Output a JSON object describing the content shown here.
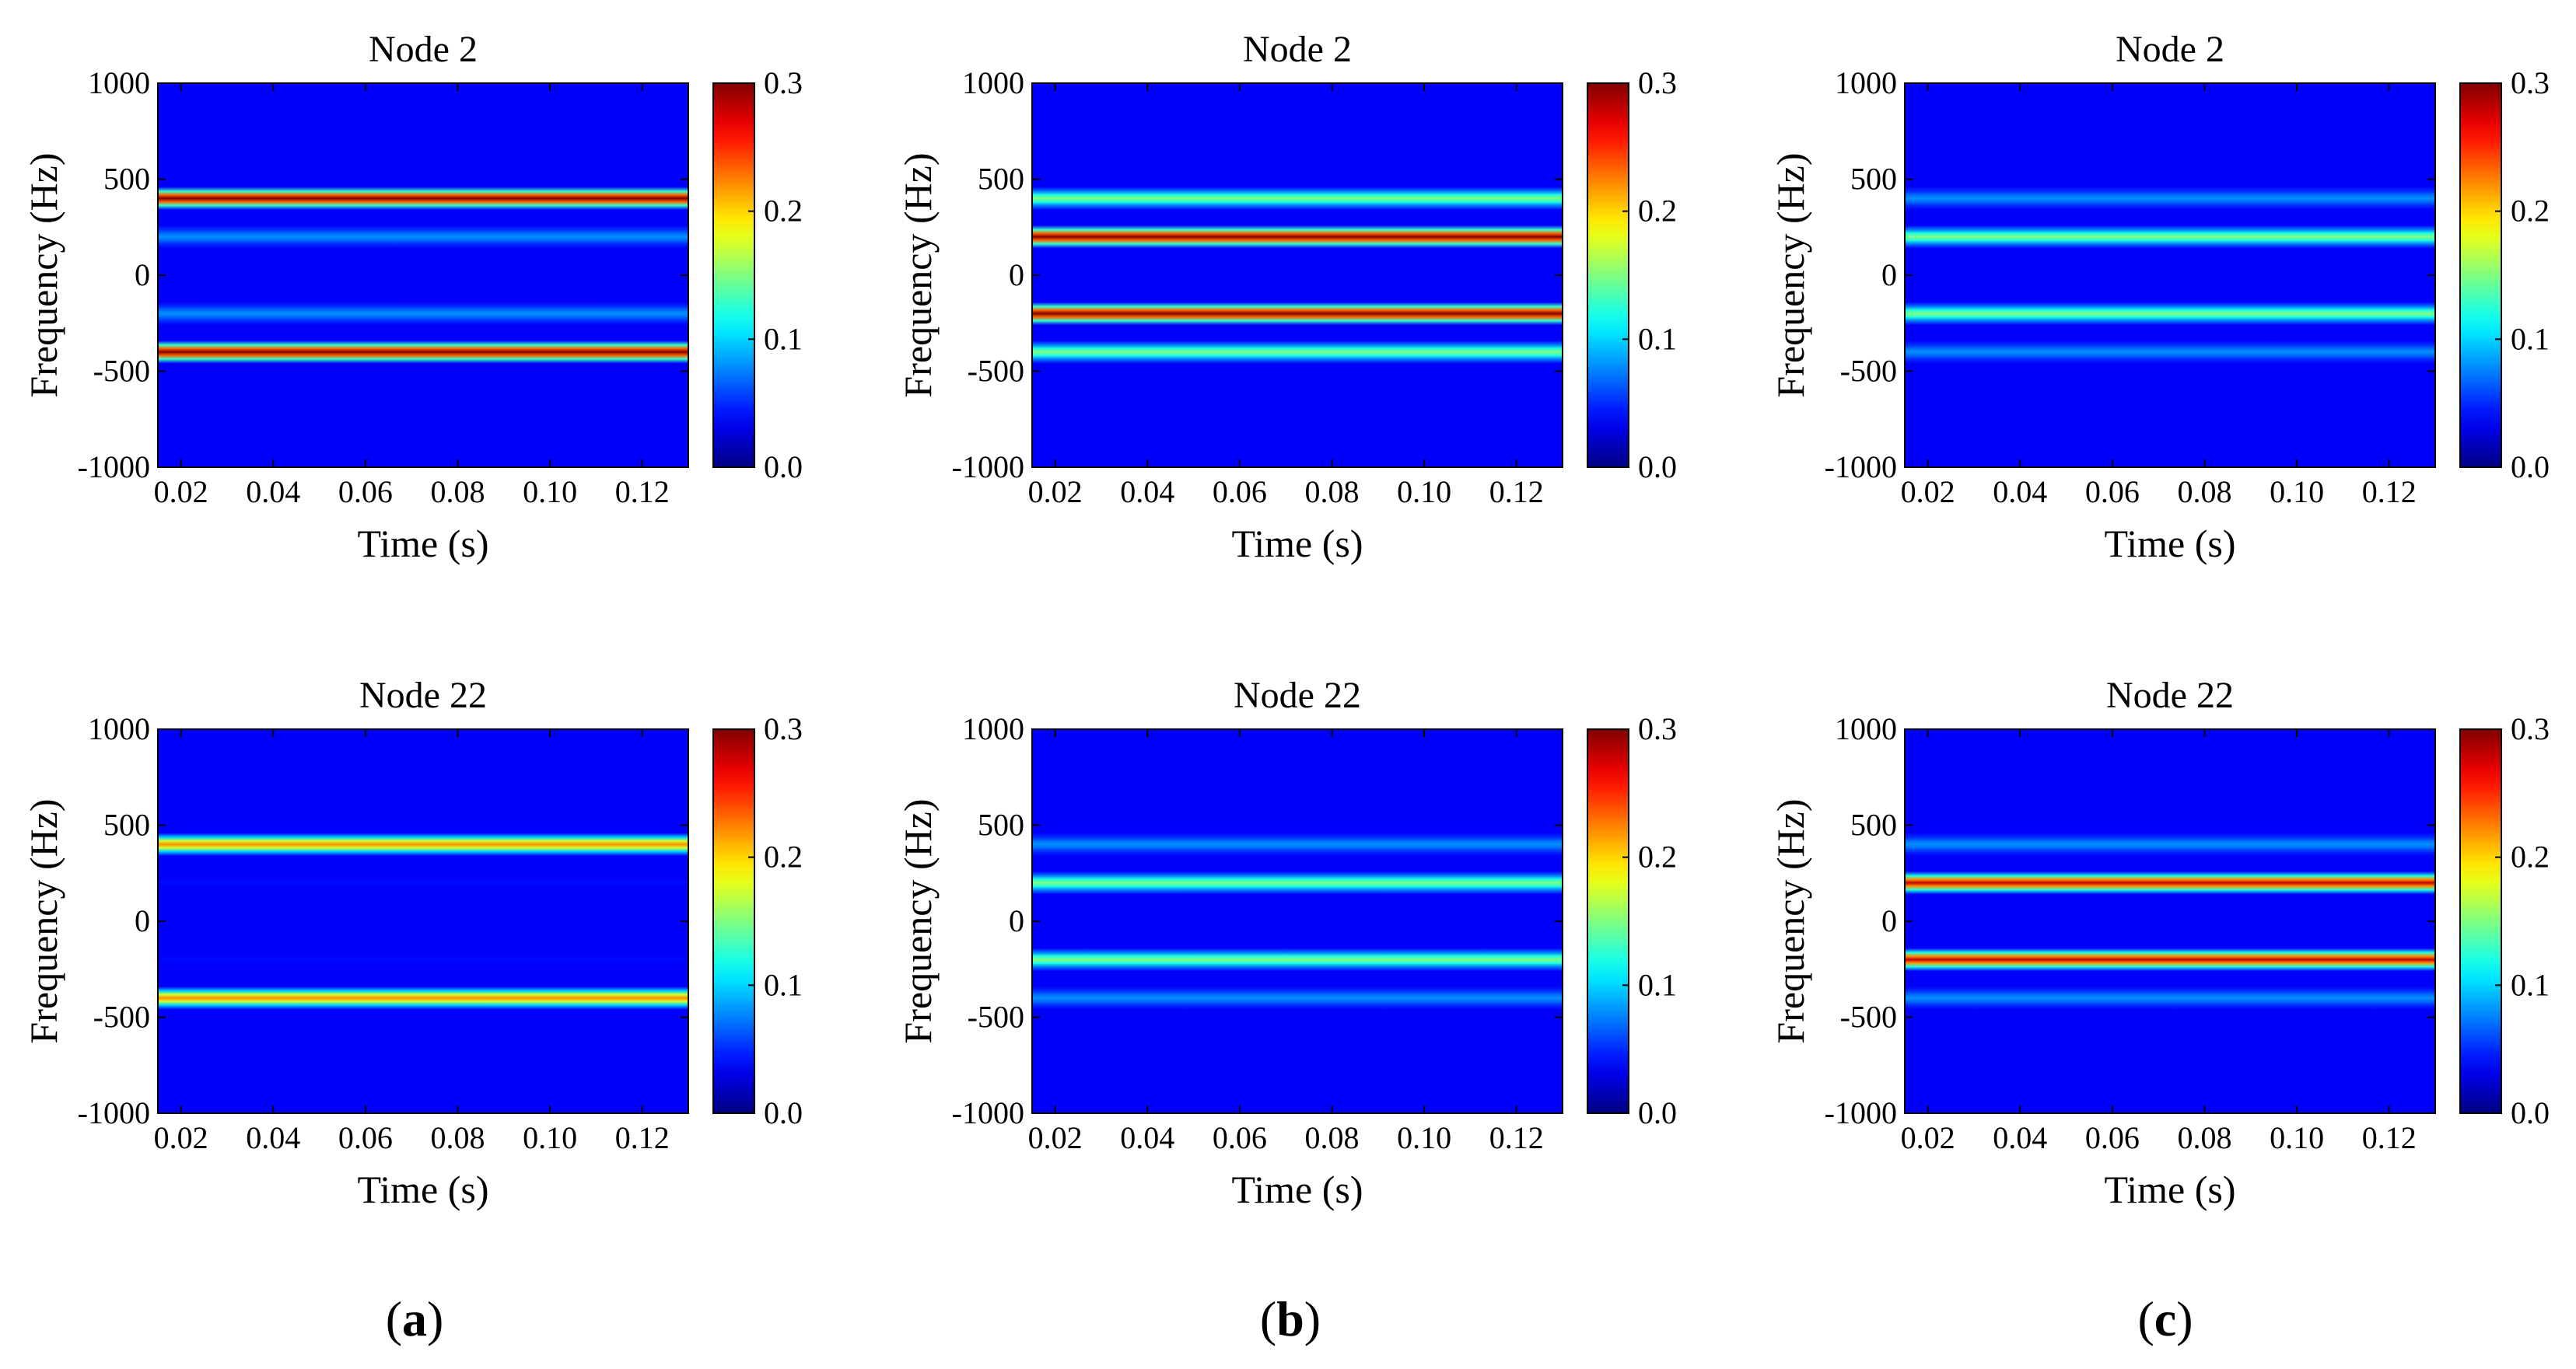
{
  "chart_data": [
    {
      "type": "heatmap",
      "panel": "a",
      "title": "Node 2",
      "xlabel": "Time (s)",
      "ylabel": "Frequency (Hz)",
      "xlim": [
        0.015,
        0.13
      ],
      "ylim": [
        -1000,
        1000
      ],
      "xticks": [
        "0.02",
        "0.04",
        "0.06",
        "0.08",
        "0.10",
        "0.12"
      ],
      "yticks": [
        "1000",
        "500",
        "0",
        "-500",
        "-1000"
      ],
      "colorbar": {
        "min": 0.0,
        "max": 0.3,
        "ticks": [
          "0.3",
          "0.2",
          "0.1",
          "0.0"
        ]
      },
      "bands": [
        {
          "freq": 400,
          "amplitude": 0.3
        },
        {
          "freq": 200,
          "amplitude": 0.08
        },
        {
          "freq": -200,
          "amplitude": 0.08
        },
        {
          "freq": -400,
          "amplitude": 0.3
        },
        {
          "freq": 600,
          "amplitude": 0.015
        },
        {
          "freq": -600,
          "amplitude": 0.015
        }
      ]
    },
    {
      "type": "heatmap",
      "panel": "b",
      "title": "Node 2",
      "xlabel": "Time (s)",
      "ylabel": "Frequency (Hz)",
      "xlim": [
        0.015,
        0.13
      ],
      "ylim": [
        -1000,
        1000
      ],
      "xticks": [
        "0.02",
        "0.04",
        "0.06",
        "0.08",
        "0.10",
        "0.12"
      ],
      "yticks": [
        "1000",
        "500",
        "0",
        "-500",
        "-1000"
      ],
      "colorbar": {
        "min": 0.0,
        "max": 0.3,
        "ticks": [
          "0.3",
          "0.2",
          "0.1",
          "0.0"
        ]
      },
      "bands": [
        {
          "freq": 400,
          "amplitude": 0.15
        },
        {
          "freq": 200,
          "amplitude": 0.3
        },
        {
          "freq": -200,
          "amplitude": 0.3
        },
        {
          "freq": -400,
          "amplitude": 0.15
        },
        {
          "freq": 600,
          "amplitude": 0.02
        },
        {
          "freq": -600,
          "amplitude": 0.02
        }
      ]
    },
    {
      "type": "heatmap",
      "panel": "c",
      "title": "Node 2",
      "xlabel": "Time (s)",
      "ylabel": "Frequency (Hz)",
      "xlim": [
        0.015,
        0.13
      ],
      "ylim": [
        -1000,
        1000
      ],
      "xticks": [
        "0.02",
        "0.04",
        "0.06",
        "0.08",
        "0.10",
        "0.12"
      ],
      "yticks": [
        "1000",
        "500",
        "0",
        "-500",
        "-1000"
      ],
      "colorbar": {
        "min": 0.0,
        "max": 0.3,
        "ticks": [
          "0.3",
          "0.2",
          "0.1",
          "0.0"
        ]
      },
      "bands": [
        {
          "freq": 400,
          "amplitude": 0.08
        },
        {
          "freq": 200,
          "amplitude": 0.15
        },
        {
          "freq": -200,
          "amplitude": 0.15
        },
        {
          "freq": -400,
          "amplitude": 0.08
        },
        {
          "freq": 800,
          "amplitude": 0.015
        },
        {
          "freq": 600,
          "amplitude": 0.015
        },
        {
          "freq": -600,
          "amplitude": 0.015
        },
        {
          "freq": -800,
          "amplitude": 0.015
        }
      ]
    },
    {
      "type": "heatmap",
      "panel": "a",
      "title": "Node 22",
      "xlabel": "Time (s)",
      "ylabel": "Frequency (Hz)",
      "xlim": [
        0.015,
        0.13
      ],
      "ylim": [
        -1000,
        1000
      ],
      "xticks": [
        "0.02",
        "0.04",
        "0.06",
        "0.08",
        "0.10",
        "0.12"
      ],
      "yticks": [
        "1000",
        "500",
        "0",
        "-500",
        "-1000"
      ],
      "colorbar": {
        "min": 0.0,
        "max": 0.3,
        "ticks": [
          "0.3",
          "0.2",
          "0.1",
          "0.0"
        ]
      },
      "bands": [
        {
          "freq": 400,
          "amplitude": 0.22
        },
        {
          "freq": 200,
          "amplitude": 0.04
        },
        {
          "freq": -200,
          "amplitude": 0.04
        },
        {
          "freq": -400,
          "amplitude": 0.22
        },
        {
          "freq": 800,
          "amplitude": 0.015
        },
        {
          "freq": 600,
          "amplitude": 0.015
        },
        {
          "freq": -600,
          "amplitude": 0.015
        },
        {
          "freq": -800,
          "amplitude": 0.015
        }
      ]
    },
    {
      "type": "heatmap",
      "panel": "b",
      "title": "Node 22",
      "xlabel": "Time (s)",
      "ylabel": "Frequency (Hz)",
      "xlim": [
        0.015,
        0.13
      ],
      "ylim": [
        -1000,
        1000
      ],
      "xticks": [
        "0.02",
        "0.04",
        "0.06",
        "0.08",
        "0.10",
        "0.12"
      ],
      "yticks": [
        "1000",
        "500",
        "0",
        "-500",
        "-1000"
      ],
      "colorbar": {
        "min": 0.0,
        "max": 0.3,
        "ticks": [
          "0.3",
          "0.2",
          "0.1",
          "0.0"
        ]
      },
      "bands": [
        {
          "freq": 400,
          "amplitude": 0.08
        },
        {
          "freq": 200,
          "amplitude": 0.15
        },
        {
          "freq": -200,
          "amplitude": 0.15
        },
        {
          "freq": -400,
          "amplitude": 0.08
        },
        {
          "freq": 800,
          "amplitude": 0.015
        },
        {
          "freq": 600,
          "amplitude": 0.015
        },
        {
          "freq": -600,
          "amplitude": 0.015
        },
        {
          "freq": -800,
          "amplitude": 0.015
        }
      ]
    },
    {
      "type": "heatmap",
      "panel": "c",
      "title": "Node 22",
      "xlabel": "Time (s)",
      "ylabel": "Frequency (Hz)",
      "xlim": [
        0.015,
        0.13
      ],
      "ylim": [
        -1000,
        1000
      ],
      "xticks": [
        "0.02",
        "0.04",
        "0.06",
        "0.08",
        "0.10",
        "0.12"
      ],
      "yticks": [
        "1000",
        "500",
        "0",
        "-500",
        "-1000"
      ],
      "colorbar": {
        "min": 0.0,
        "max": 0.3,
        "ticks": [
          "0.3",
          "0.2",
          "0.1",
          "0.0"
        ]
      },
      "bands": [
        {
          "freq": 400,
          "amplitude": 0.08
        },
        {
          "freq": 200,
          "amplitude": 0.28
        },
        {
          "freq": -200,
          "amplitude": 0.28
        },
        {
          "freq": -400,
          "amplitude": 0.08
        },
        {
          "freq": 800,
          "amplitude": 0.015
        },
        {
          "freq": 600,
          "amplitude": 0.015
        },
        {
          "freq": -600,
          "amplitude": 0.015
        },
        {
          "freq": -800,
          "amplitude": 0.015
        }
      ]
    }
  ],
  "panel_labels": [
    {
      "open": "(",
      "letter": "a",
      "close": ")"
    },
    {
      "open": "(",
      "letter": "b",
      "close": ")"
    },
    {
      "open": "(",
      "letter": "c",
      "close": ")"
    }
  ]
}
